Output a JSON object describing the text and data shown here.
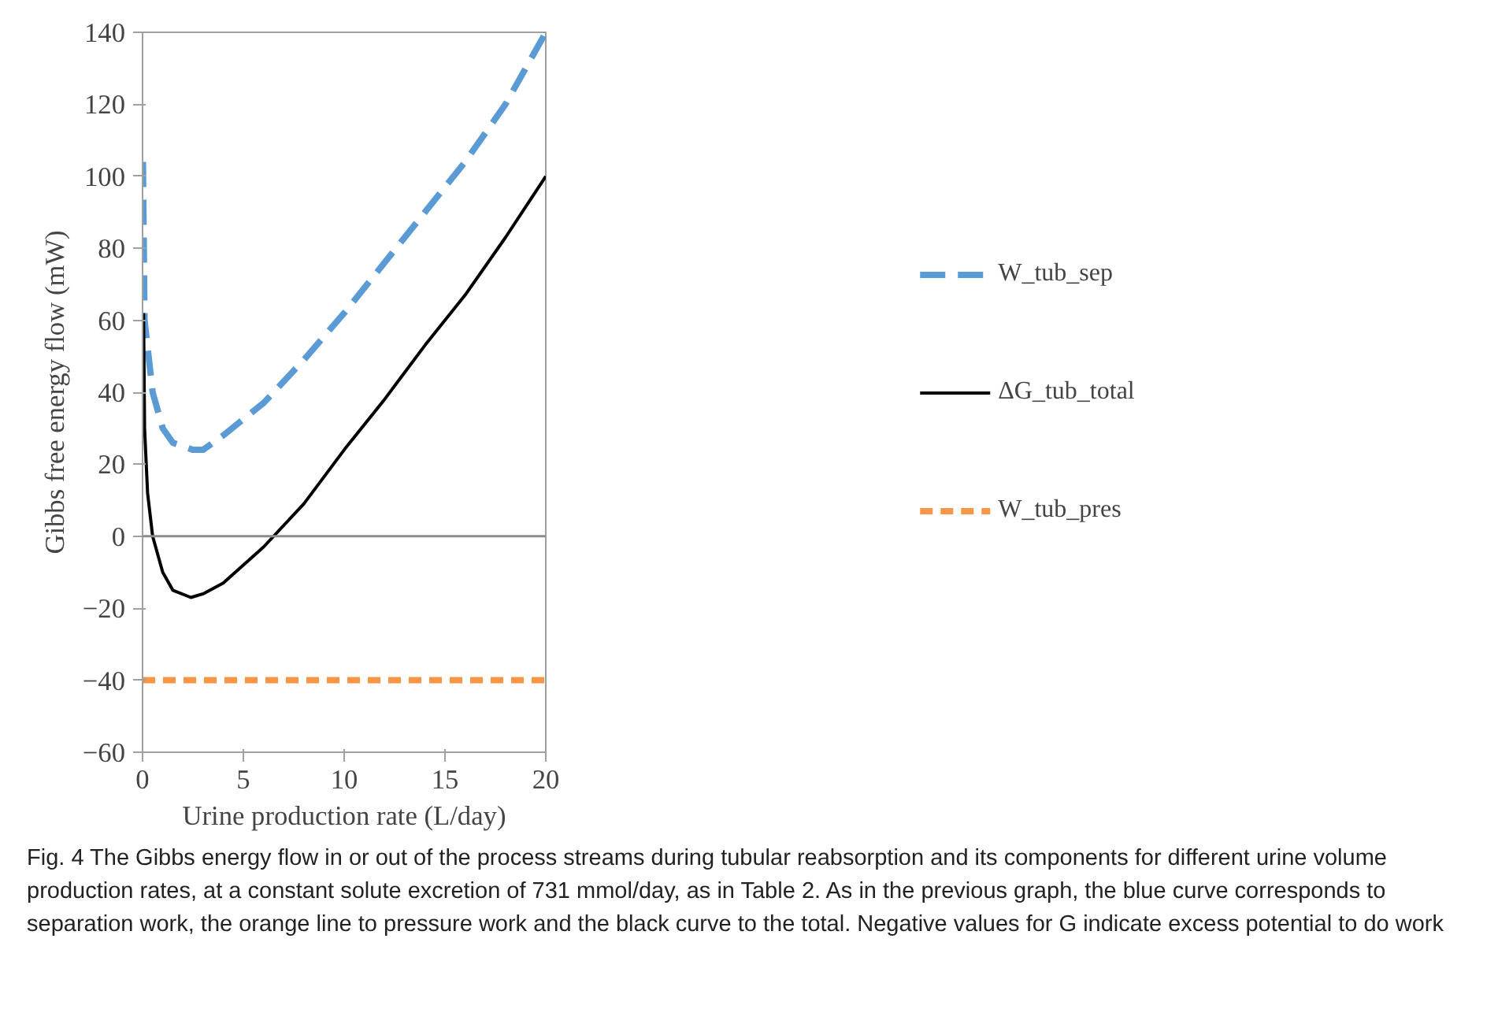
{
  "chart_data": {
    "type": "line",
    "xlabel": "Urine production rate (L/day)",
    "ylabel": "Gibbs free energy flow (mW)",
    "xlim": [
      0,
      20
    ],
    "xticks": [
      0,
      5,
      10,
      15,
      20
    ],
    "ylim": [
      -60,
      140
    ],
    "yticks": [
      -60,
      -40,
      -20,
      0,
      20,
      40,
      60,
      80,
      100,
      120,
      140
    ],
    "grid": false,
    "legend": "right",
    "marker": "none",
    "series": [
      {
        "name": "W_tub_sep",
        "color": "#5b9bd5",
        "line_style": "dashed",
        "x": [
          0.02,
          0.1,
          0.5,
          1,
          1.5,
          2.5,
          3,
          4,
          6,
          8,
          10,
          12,
          14,
          16,
          18,
          20
        ],
        "values": [
          104,
          60,
          40,
          30,
          26,
          24,
          24,
          28,
          37,
          49,
          62,
          76,
          90,
          104,
          120,
          140
        ]
      },
      {
        "name": "ΔG_tub_total",
        "color": "#000000",
        "line_style": "solid",
        "x": [
          0.05,
          0.1,
          0.25,
          0.5,
          1,
          1.5,
          2.4,
          3,
          4,
          6,
          8,
          10,
          12,
          14,
          16,
          18,
          20
        ],
        "values": [
          62,
          30,
          12,
          0,
          -10,
          -15,
          -17,
          -16,
          -13,
          -3,
          9,
          24,
          38,
          53,
          67,
          83,
          100
        ]
      },
      {
        "name": "W_tub_pres",
        "color": "#f79646",
        "line_style": "dotted",
        "x": [
          0,
          20
        ],
        "values": [
          -40,
          -40
        ]
      }
    ],
    "ref_lines": [
      {
        "axis": "y",
        "value": 0,
        "color": "#8c8c8c",
        "line_style": "solid"
      }
    ],
    "annotations": [
      "Fig. 4 The Gibbs energy flow in or out of the process streams during tubular reabsorption and its components for different urine volume production rates, at a constant solute excretion of 731 mmol/day, as in Table 2. As in the previous graph, the blue curve corresponds to separation work, the orange line to pressure work and the black curve to the total. Negative values for G indicate excess potential to do work"
    ]
  }
}
